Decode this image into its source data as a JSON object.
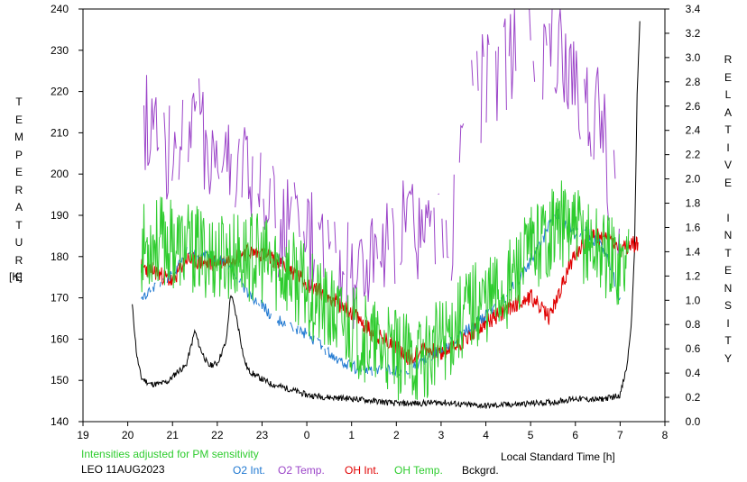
{
  "chart_data": {
    "type": "line",
    "station": "LEO 11AUG2023",
    "note": "Intensities adjusted for PM sensitivity",
    "xlabel": "Local Standard Time [h]",
    "ylabel_left": "TEMPERATURE",
    "ylabel_left_unit": "[K]",
    "ylabel_right": "RELATIVE INTENSITY",
    "x_ticks": [
      19,
      20,
      21,
      22,
      23,
      24,
      25,
      26,
      27,
      28,
      29,
      30,
      31,
      32
    ],
    "x_tick_labels": [
      "19",
      "20",
      "21",
      "22",
      "23",
      "0",
      "1",
      "2",
      "3",
      "4",
      "5",
      "6",
      "7",
      "8"
    ],
    "xlim": [
      19,
      32
    ],
    "ylim_left": [
      140,
      240
    ],
    "y_left_ticks": [
      140,
      150,
      160,
      170,
      180,
      190,
      200,
      210,
      220,
      230,
      240
    ],
    "ylim_right": [
      0.0,
      3.4
    ],
    "y_right_tick_labels": [
      "0.0",
      "0.2",
      "0.4",
      "0.6",
      "0.8",
      "1.0",
      "1.2",
      "1.4",
      "1.6",
      "1.8",
      "2.0",
      "2.2",
      "2.4",
      "2.6",
      "2.8",
      "3.0",
      "3.2",
      "3.4"
    ],
    "legend": [
      {
        "name": "O2 Int.",
        "color": "#1f78d1"
      },
      {
        "name": "O2 Temp.",
        "color": "#9b44c8"
      },
      {
        "name": "OH Int.",
        "color": "#e00000"
      },
      {
        "name": "OH Temp.",
        "color": "#2ecc2e"
      },
      {
        "name": "Bckgrd.",
        "color": "#000000"
      }
    ],
    "series": [
      {
        "name": "Bckgrd.",
        "axis": "right",
        "color": "#000000",
        "x": [
          20.1,
          20.2,
          20.3,
          20.5,
          20.7,
          20.9,
          21.1,
          21.3,
          21.4,
          21.5,
          21.6,
          21.8,
          22.0,
          22.2,
          22.3,
          22.4,
          22.5,
          22.6,
          22.7,
          22.9,
          23.2,
          23.6,
          24.0,
          24.5,
          25.0,
          25.5,
          26.0,
          26.5,
          27.0,
          27.5,
          28.0,
          28.5,
          29.0,
          29.5,
          30.0,
          30.5,
          30.8,
          31.0,
          31.15,
          31.25,
          31.32,
          31.38,
          31.45
        ],
        "y": [
          0.96,
          0.55,
          0.36,
          0.31,
          0.31,
          0.33,
          0.41,
          0.46,
          0.6,
          0.75,
          0.62,
          0.46,
          0.48,
          0.66,
          1.06,
          0.91,
          0.72,
          0.51,
          0.42,
          0.37,
          0.31,
          0.27,
          0.22,
          0.2,
          0.19,
          0.17,
          0.15,
          0.15,
          0.16,
          0.14,
          0.13,
          0.14,
          0.15,
          0.16,
          0.19,
          0.18,
          0.2,
          0.22,
          0.45,
          0.8,
          1.4,
          2.7,
          3.4
        ]
      },
      {
        "name": "OH Int.",
        "axis": "right",
        "color": "#e00000",
        "x": [
          20.3,
          20.7,
          21.0,
          21.3,
          21.8,
          22.2,
          22.7,
          23.0,
          23.3,
          23.6,
          24.0,
          24.5,
          25.0,
          25.5,
          26.0,
          26.3,
          26.6,
          27.0,
          27.4,
          27.8,
          28.2,
          28.6,
          29.0,
          29.4,
          29.6,
          30.0,
          30.4,
          30.8,
          31.0,
          31.2,
          31.4
        ],
        "y": [
          1.28,
          1.22,
          1.15,
          1.34,
          1.3,
          1.33,
          1.4,
          1.38,
          1.33,
          1.26,
          1.14,
          1.03,
          0.9,
          0.72,
          0.62,
          0.52,
          0.6,
          0.56,
          0.64,
          0.76,
          0.86,
          0.96,
          1.03,
          0.86,
          1.02,
          1.4,
          1.53,
          1.5,
          1.4,
          1.44,
          1.48
        ]
      },
      {
        "name": "O2 Int.",
        "axis": "right",
        "color": "#1f78d1",
        "x": [
          20.3,
          20.6,
          21.0,
          21.3,
          21.6,
          22.0,
          22.3,
          22.6,
          23.0,
          23.3,
          23.6,
          24.0,
          24.4,
          24.7,
          25.0,
          25.4,
          25.8,
          26.2,
          26.5,
          26.8,
          27.2,
          27.6,
          28.0,
          28.4,
          28.8,
          29.2,
          29.4,
          29.6,
          29.8,
          30.0,
          30.2,
          30.4,
          30.7,
          31.0
        ],
        "y": [
          1.0,
          1.1,
          1.21,
          1.4,
          1.37,
          1.35,
          1.28,
          1.1,
          0.95,
          0.85,
          0.8,
          0.72,
          0.6,
          0.5,
          0.45,
          0.42,
          0.43,
          0.4,
          0.48,
          0.55,
          0.65,
          0.76,
          0.88,
          1.02,
          1.2,
          1.45,
          1.6,
          1.72,
          1.62,
          1.54,
          1.58,
          1.5,
          1.4,
          1.0
        ]
      },
      {
        "name": "O2 Temp.",
        "axis": "left",
        "color": "#9b44c8",
        "x": [
          20.3,
          20.6,
          21.0,
          21.3,
          21.7,
          22.0,
          22.4,
          22.8,
          23.1,
          23.4,
          23.7,
          24.0,
          24.4,
          24.8,
          25.1,
          25.5,
          25.9,
          26.3,
          26.6,
          26.9,
          27.2,
          27.5,
          27.8,
          28.1,
          28.4,
          28.7,
          29.0,
          29.3,
          29.6,
          29.9,
          30.2,
          30.5,
          30.8,
          31.0
        ],
        "y": [
          214,
          211,
          205,
          208,
          210,
          203,
          204,
          197,
          192,
          188,
          186,
          183,
          180,
          178,
          176,
          178,
          182,
          186,
          184,
          182,
          185,
          210,
          218,
          224,
          229,
          231,
          230,
          228,
          228,
          224,
          219,
          212,
          200,
          190
        ]
      },
      {
        "name": "OH Temp.",
        "axis": "left",
        "color": "#2ecc2e",
        "x": [
          20.3,
          20.6,
          21.0,
          21.3,
          21.7,
          22.0,
          22.4,
          22.8,
          23.2,
          23.6,
          24.0,
          24.4,
          24.8,
          25.2,
          25.6,
          26.0,
          26.4,
          26.8,
          27.2,
          27.6,
          28.0,
          28.4,
          28.8,
          29.2,
          29.6,
          29.9,
          30.2,
          30.5,
          30.8,
          31.0,
          31.2
        ],
        "y": [
          182,
          184,
          183,
          182,
          181,
          180,
          180,
          180,
          178,
          176,
          172,
          167,
          164,
          161,
          158,
          156,
          155,
          157,
          162,
          168,
          170,
          172,
          178,
          184,
          188,
          187,
          184,
          182,
          180,
          178,
          180
        ]
      }
    ]
  },
  "legend_labels": {
    "station": "LEO 11AUG2023",
    "o2int": "O2 Int.",
    "o2temp": "O2 Temp.",
    "ohint": "OH Int.",
    "ohtemp": "OH Temp.",
    "bckgrd": "Bckgrd."
  }
}
